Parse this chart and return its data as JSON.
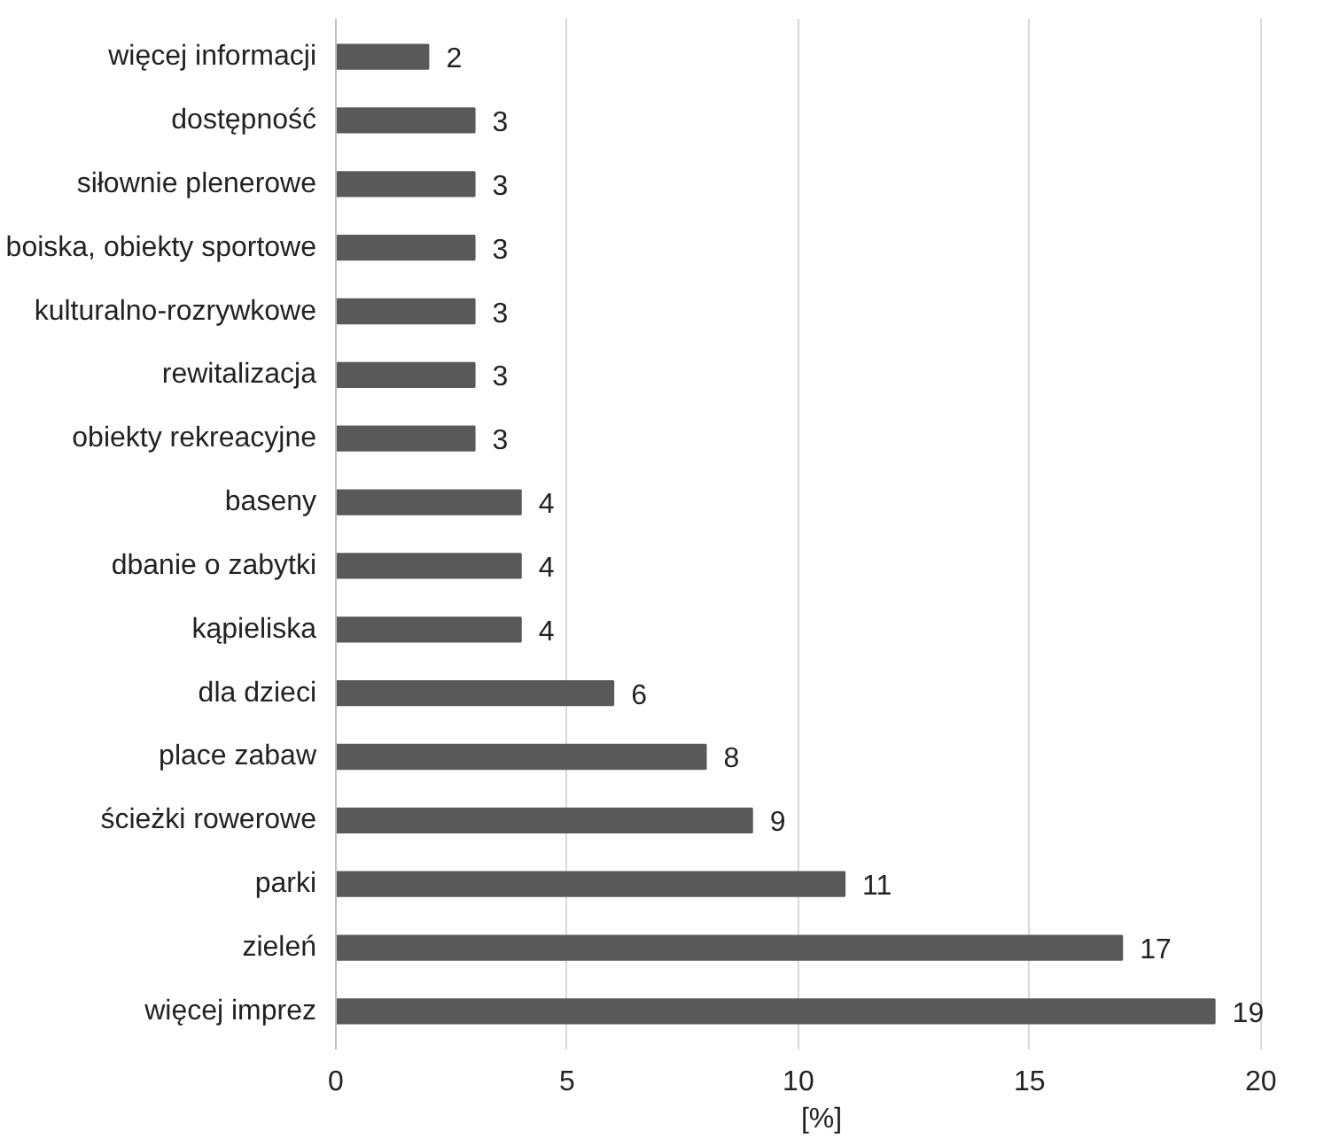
{
  "chart_data": {
    "type": "bar",
    "orientation": "horizontal",
    "xlabel": "[%]",
    "categories": [
      "więcej informacji",
      "dostępność",
      "siłownie plenerowe",
      "boiska, obiekty sportowe",
      "kulturalno-rozrywkowe",
      "rewitalizacja",
      "obiekty rekreacyjne",
      "baseny",
      "dbanie o zabytki",
      "kąpieliska",
      "dla dzieci",
      "place zabaw",
      "ścieżki rowerowe",
      "parki",
      "zieleń",
      "więcej imprez"
    ],
    "values": [
      2,
      3,
      3,
      3,
      3,
      3,
      3,
      4,
      4,
      4,
      6,
      8,
      9,
      11,
      17,
      19
    ],
    "color": "#595959",
    "xlim": [
      0,
      20
    ],
    "xticks": [
      0,
      5,
      10,
      15,
      20
    ],
    "grid": "x",
    "data_labels": true
  }
}
